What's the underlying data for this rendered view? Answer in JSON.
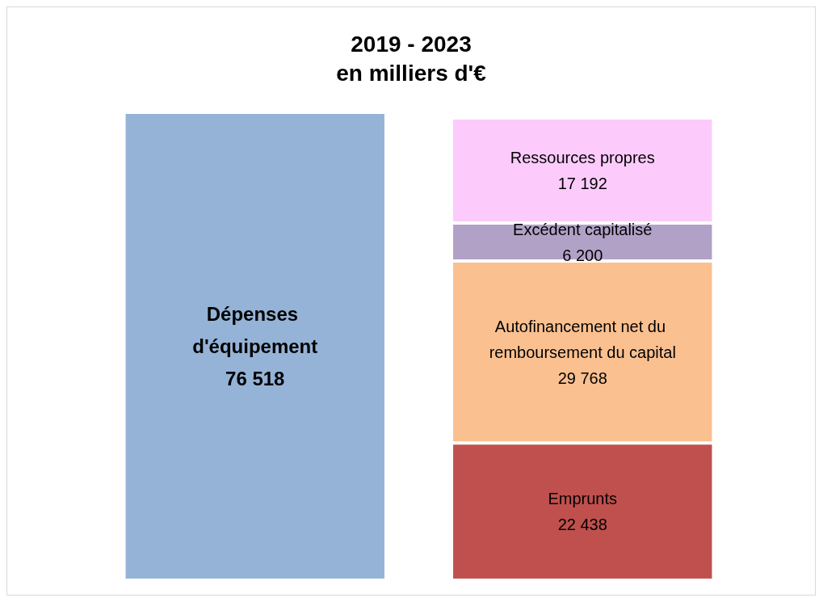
{
  "chart_data": {
    "type": "bar",
    "title": "2019 - 2023",
    "subtitle": "en milliers d'€",
    "stacked": true,
    "categories": [
      null,
      null
    ],
    "series": [
      {
        "name": "Dépenses d'équipement",
        "color": "#95b3d7",
        "values": [
          76518,
          null
        ],
        "value_labels": [
          "76 518",
          null
        ]
      },
      {
        "name": "Emprunts",
        "color": "#c0504d",
        "values": [
          null,
          22438
        ],
        "value_labels": [
          null,
          "22 438"
        ]
      },
      {
        "name": "Autofinancement net du remboursement du capital",
        "color": "#fac090",
        "values": [
          null,
          29768
        ],
        "value_labels": [
          null,
          "29 768"
        ]
      },
      {
        "name": "Excédent capitalisé",
        "color": "#b2a1c7",
        "values": [
          null,
          6200
        ],
        "value_labels": [
          null,
          "6 200"
        ]
      },
      {
        "name": "Ressources propres",
        "color": "#fccbfc",
        "values": [
          null,
          17192
        ],
        "value_labels": [
          null,
          "17 192"
        ]
      }
    ]
  }
}
